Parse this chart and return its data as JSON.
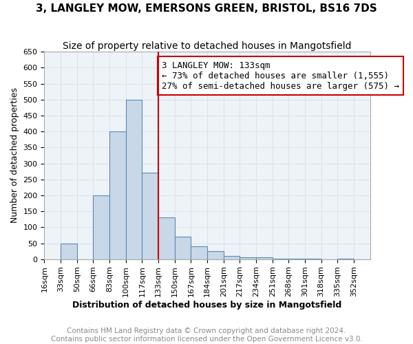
{
  "title": "3, LANGLEY MOW, EMERSONS GREEN, BRISTOL, BS16 7DS",
  "subtitle": "Size of property relative to detached houses in Mangotsfield",
  "xlabel": "Distribution of detached houses by size in Mangotsfield",
  "ylabel": "Number of detached properties",
  "footer_line1": "Contains HM Land Registry data © Crown copyright and database right 2024.",
  "footer_line2": "Contains public sector information licensed under the Open Government Licence v3.0.",
  "annotation_title": "3 LANGLEY MOW: 133sqm",
  "annotation_line1": "← 73% of detached houses are smaller (1,555)",
  "annotation_line2": "27% of semi-detached houses are larger (575) →",
  "bin_labels": [
    "16sqm",
    "33sqm",
    "50sqm",
    "66sqm",
    "83sqm",
    "100sqm",
    "117sqm",
    "133sqm",
    "150sqm",
    "167sqm",
    "184sqm",
    "201sqm",
    "217sqm",
    "234sqm",
    "251sqm",
    "268sqm",
    "301sqm",
    "318sqm",
    "335sqm",
    "352sqm"
  ],
  "bar_heights": [
    0,
    50,
    0,
    200,
    400,
    500,
    270,
    130,
    70,
    40,
    25,
    10,
    5,
    5,
    2,
    2,
    1,
    0,
    1,
    0
  ],
  "bar_color": "#c8d8e8",
  "bar_edge_color": "#5a8ab5",
  "grid_color": "#d8e4f0",
  "property_line_color": "#cc0000",
  "annotation_box_edge": "#cc0000",
  "ylim": [
    0,
    650
  ],
  "yticks": [
    0,
    50,
    100,
    150,
    200,
    250,
    300,
    350,
    400,
    450,
    500,
    550,
    600,
    650
  ],
  "ax_facecolor": "#eef3f8",
  "background_color": "#ffffff",
  "title_fontsize": 11,
  "subtitle_fontsize": 10,
  "label_fontsize": 9,
  "tick_fontsize": 8,
  "footer_fontsize": 7.5,
  "annotation_fontsize": 9,
  "prop_bar_index": 7
}
